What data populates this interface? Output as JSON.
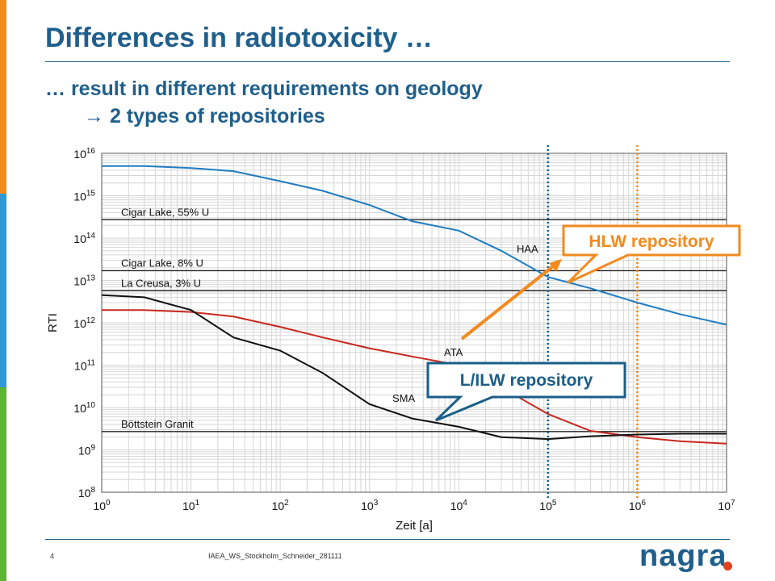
{
  "slide": {
    "title": "Differences in radiotoxicity …",
    "subtitle_line1": "… result in different requirements on geology",
    "subtitle_line2": "2 types of repositories",
    "arrow_glyph": "→",
    "page_number": "4",
    "footer_text": "IAEA_WS_Stockholm_Schneider_281111",
    "logo_text": "nagra",
    "colors": {
      "title": "#1f5f8b",
      "side_bar": [
        "#f28a1e",
        "#2f9ad4",
        "#5cb531"
      ],
      "logo_dot": "#e3411d"
    }
  },
  "chart_data": {
    "type": "line",
    "xlabel": "Zeit [a]",
    "ylabel": "RTI",
    "x_scale": "log",
    "y_scale": "log",
    "xlim": [
      1,
      10000000
    ],
    "ylim": [
      100000000,
      10000000000000000
    ],
    "x_ticks": [
      "10^0",
      "10^1",
      "10^2",
      "10^3",
      "10^4",
      "10^5",
      "10^6",
      "10^7"
    ],
    "y_ticks": [
      "10^8",
      "10^9",
      "10^10",
      "10^11",
      "10^12",
      "10^13",
      "10^14",
      "10^15",
      "10^16"
    ],
    "grid": true,
    "series": [
      {
        "name": "HAA",
        "color": "#1f7cc2",
        "x": [
          1,
          3,
          10,
          30,
          100,
          300,
          1000,
          3000,
          10000,
          30000,
          100000,
          300000,
          1000000,
          3000000,
          10000000
        ],
        "y": [
          5000000000000000.0,
          5000000000000000.0,
          4500000000000000.0,
          3800000000000000.0,
          2200000000000000.0,
          1300000000000000.0,
          600000000000000.0,
          250000000000000.0,
          150000000000000.0,
          50000000000000.0,
          12000000000000.0,
          6500000000000.0,
          3000000000000.0,
          1600000000000.0,
          900000000000.0
        ]
      },
      {
        "name": "ATA",
        "color": "#c8281e",
        "x": [
          1,
          3,
          10,
          30,
          100,
          300,
          1000,
          3000,
          10000,
          30000,
          100000,
          300000,
          1000000,
          3000000,
          10000000
        ],
        "y": [
          2000000000000.0,
          2000000000000.0,
          1800000000000.0,
          1400000000000.0,
          800000000000.0,
          450000000000.0,
          250000000000.0,
          160000000000.0,
          100000000000.0,
          30000000000.0,
          7000000000.0,
          2800000000.0,
          2000000000.0,
          1600000000.0,
          1400000000.0
        ]
      },
      {
        "name": "SMA",
        "color": "#111111",
        "x": [
          1,
          3,
          10,
          30,
          100,
          300,
          1000,
          3000,
          10000,
          30000,
          100000,
          300000,
          1000000,
          3000000,
          10000000
        ],
        "y": [
          4500000000000.0,
          4000000000000.0,
          2000000000000.0,
          450000000000.0,
          220000000000.0,
          65000000000.0,
          12000000000.0,
          5500000000.0,
          3500000000.0,
          2000000000.0,
          1800000000.0,
          2100000000.0,
          2300000000.0,
          2400000000.0,
          2400000000.0
        ]
      }
    ],
    "reference_lines": [
      {
        "label": "Cigar Lake, 55% U",
        "y": 270000000000000.0
      },
      {
        "label": "Cigar Lake, 8% U",
        "y": 17000000000000.0
      },
      {
        "label": "La Creusa, 3% U",
        "y": 5700000000000.0
      },
      {
        "label": "Böttstein Granit",
        "y": 2700000000.0
      }
    ],
    "vertical_markers": [
      {
        "x": 100000,
        "color": "#1a5e88",
        "style": "dotted"
      },
      {
        "x": 1000000,
        "color": "#f28a1e",
        "style": "dotted"
      }
    ],
    "callouts": [
      {
        "text": "HLW repository",
        "color": "#f28a1e"
      },
      {
        "text": "L/ILW repository",
        "color": "#1a5e88"
      }
    ]
  }
}
